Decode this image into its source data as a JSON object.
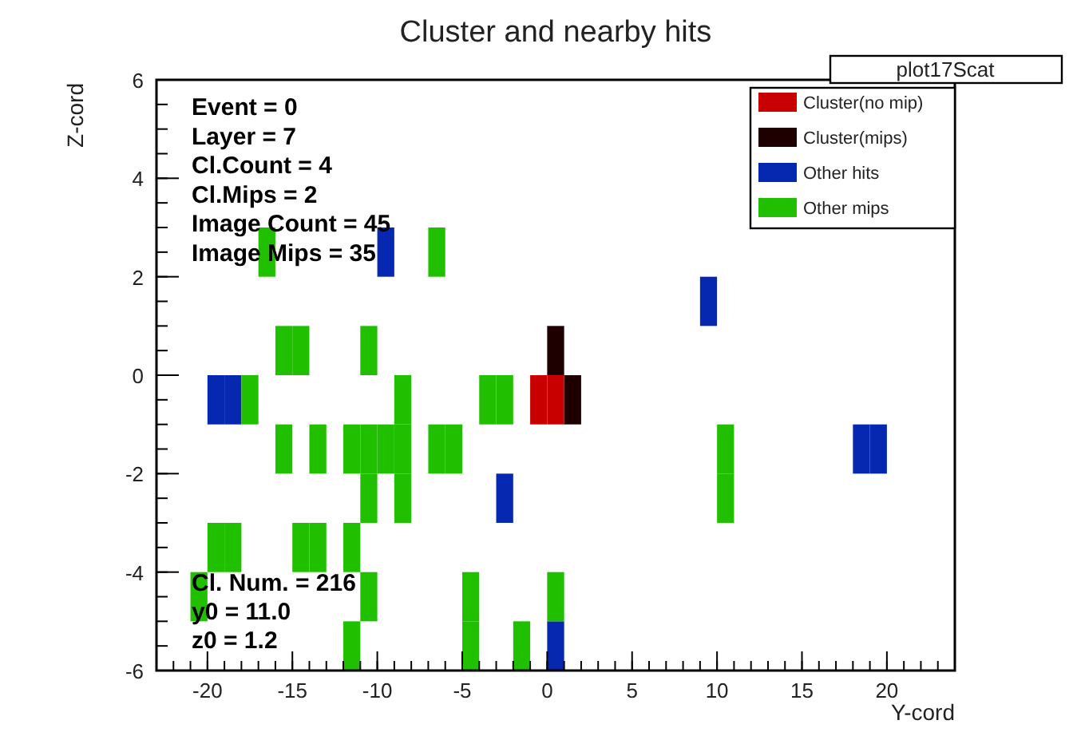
{
  "chart_data": {
    "type": "scatter",
    "title": "Cluster and nearby hits",
    "xlabel": "Y-cord",
    "ylabel": "Z-cord",
    "xlim": [
      -23,
      24
    ],
    "xticks": [
      -20,
      -15,
      -10,
      -5,
      0,
      5,
      10,
      15,
      20
    ],
    "ylim": [
      -6,
      6
    ],
    "yticks": [
      -6,
      -4,
      -2,
      0,
      2,
      4,
      6
    ],
    "marker": "square",
    "legend": "top right",
    "grid": false,
    "annotations": [
      "plot17Scat",
      "Event = 0",
      "Layer = 7",
      "Cl.Count = 4",
      "Cl.Mips = 2",
      "Image Count = 45",
      "Image Mips = 35",
      "Cl. Num. = 216",
      "y0 = 11.0",
      "z0 = 1.2"
    ],
    "series": [
      {
        "name": "Cluster(no mip)",
        "color": "#c80000",
        "x": [
          -0.5,
          0.5
        ],
        "values": [
          -0.5,
          -0.5
        ]
      },
      {
        "name": "Cluster(mips)",
        "color": "#1e0000",
        "x": [
          0.5,
          1.5
        ],
        "values": [
          0.5,
          -0.5
        ]
      },
      {
        "name": "Other hits",
        "color": "#0628b0",
        "x": [
          -9.5,
          9.5,
          -19.5,
          -18.5,
          -2.5,
          18.5,
          19.5,
          0.5
        ],
        "values": [
          2.5,
          1.5,
          -0.5,
          -0.5,
          -2.5,
          -1.5,
          -1.5,
          -5.5
        ]
      },
      {
        "name": "Other mips",
        "color": "#20c000",
        "x": [
          -16.5,
          -6.5,
          -15.5,
          -14.5,
          -10.5,
          -17.5,
          -8.5,
          -3.5,
          -2.5,
          -15.5,
          -13.5,
          -11.5,
          -10.5,
          -9.5,
          -8.5,
          -6.5,
          -5.5,
          10.5,
          -10.5,
          -8.5,
          10.5,
          -19.5,
          -18.5,
          -14.5,
          -13.5,
          -11.5,
          -20.5,
          -10.5,
          -4.5,
          0.5,
          -11.5,
          -4.5,
          -1.5
        ],
        "values": [
          2.5,
          2.5,
          0.5,
          0.5,
          0.5,
          -0.5,
          -0.5,
          -0.5,
          -0.5,
          -1.5,
          -1.5,
          -1.5,
          -1.5,
          -1.5,
          -1.5,
          -1.5,
          -1.5,
          -1.5,
          -2.5,
          -2.5,
          -2.5,
          -3.5,
          -3.5,
          -3.5,
          -3.5,
          -3.5,
          -4.5,
          -4.5,
          -4.5,
          -4.5,
          -5.5,
          -5.5,
          -5.5
        ]
      }
    ]
  }
}
